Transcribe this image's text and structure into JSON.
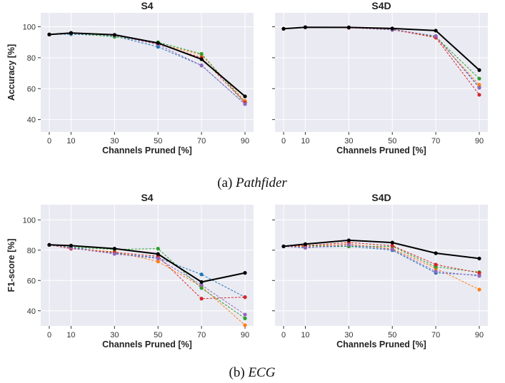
{
  "figure": {
    "captions": [
      {
        "label": "(a)",
        "name": "Pathfider"
      },
      {
        "label": "(b)",
        "name": "ECG"
      }
    ]
  },
  "chart_data": [
    {
      "type": "line",
      "title": "S4",
      "xlabel": "Channels Pruned [%]",
      "ylabel": "Accuracy [%]",
      "x": [
        0,
        10,
        30,
        50,
        70,
        90
      ],
      "ylim": [
        32,
        109
      ],
      "yticks": [
        40,
        60,
        80,
        100
      ],
      "grid": true,
      "series": [
        {
          "color": "#1f77b4",
          "style": "dashed",
          "values": [
            95,
            95.2,
            94,
            87,
            75,
            50
          ]
        },
        {
          "color": "#ff7f0e",
          "style": "dashed",
          "values": [
            95,
            96,
            94.5,
            89,
            82,
            52
          ]
        },
        {
          "color": "#2ca02c",
          "style": "dashed",
          "values": [
            95,
            96,
            93.5,
            90,
            82.5,
            51
          ]
        },
        {
          "color": "#d62728",
          "style": "dashed",
          "values": [
            95,
            96,
            94.5,
            89,
            80,
            51
          ]
        },
        {
          "color": "#9467bd",
          "style": "dashed",
          "values": [
            95,
            96,
            94.5,
            88.5,
            75,
            50
          ]
        },
        {
          "color": "#000000",
          "style": "solid",
          "values": [
            95,
            96,
            94.8,
            89.5,
            79,
            55
          ]
        }
      ]
    },
    {
      "type": "line",
      "title": "S4D",
      "xlabel": "Channels Pruned [%]",
      "ylabel": "",
      "x": [
        0,
        10,
        30,
        50,
        70,
        90
      ],
      "ylim": [
        32,
        109
      ],
      "yticks": [
        40,
        60,
        80,
        100
      ],
      "grid": true,
      "series": [
        {
          "color": "#1f77b4",
          "style": "dashed",
          "values": [
            98.7,
            99.7,
            99.5,
            98,
            94,
            61
          ]
        },
        {
          "color": "#ff7f0e",
          "style": "dashed",
          "values": [
            98.7,
            99.7,
            99.5,
            98.3,
            93,
            62.5
          ]
        },
        {
          "color": "#2ca02c",
          "style": "dashed",
          "values": [
            98.7,
            99.7,
            99.5,
            98.5,
            93.5,
            66.5
          ]
        },
        {
          "color": "#d62728",
          "style": "dashed",
          "values": [
            98.7,
            99.7,
            99.3,
            98.2,
            93,
            56
          ]
        },
        {
          "color": "#9467bd",
          "style": "dashed",
          "values": [
            98.7,
            99.7,
            99.5,
            98.3,
            94,
            60.5
          ]
        },
        {
          "color": "#000000",
          "style": "solid",
          "values": [
            98.7,
            99.7,
            99.6,
            98.9,
            97.5,
            72
          ]
        }
      ]
    },
    {
      "type": "line",
      "title": "S4",
      "xlabel": "Channels Pruned [%]",
      "ylabel": "F1-score [%]",
      "x": [
        0,
        10,
        30,
        50,
        70,
        90
      ],
      "ylim": [
        30,
        110
      ],
      "yticks": [
        40,
        60,
        80,
        100
      ],
      "grid": true,
      "series": [
        {
          "color": "#1f77b4",
          "style": "dashed",
          "values": [
            83.5,
            82,
            78,
            75,
            64,
            49
          ]
        },
        {
          "color": "#ff7f0e",
          "style": "dashed",
          "values": [
            83.5,
            81,
            79,
            72.5,
            56,
            30.5
          ]
        },
        {
          "color": "#2ca02c",
          "style": "dashed",
          "values": [
            83.5,
            82,
            80.5,
            81,
            55,
            35
          ]
        },
        {
          "color": "#d62728",
          "style": "dashed",
          "values": [
            83.5,
            81,
            78.5,
            76,
            48,
            49
          ]
        },
        {
          "color": "#9467bd",
          "style": "dashed",
          "values": [
            83.5,
            81.5,
            77.5,
            74.5,
            57,
            37.5
          ]
        },
        {
          "color": "#000000",
          "style": "solid",
          "values": [
            83.5,
            83,
            81,
            77.5,
            59,
            65
          ]
        }
      ]
    },
    {
      "type": "line",
      "title": "S4D",
      "xlabel": "Channels Pruned [%]",
      "ylabel": "",
      "x": [
        0,
        10,
        30,
        50,
        70,
        90
      ],
      "ylim": [
        30,
        110
      ],
      "yticks": [
        40,
        60,
        80,
        100
      ],
      "grid": true,
      "series": [
        {
          "color": "#1f77b4",
          "style": "dashed",
          "values": [
            82.5,
            82,
            82.5,
            80,
            65,
            63.5
          ]
        },
        {
          "color": "#ff7f0e",
          "style": "dashed",
          "values": [
            82.5,
            82.5,
            84,
            81,
            68,
            54
          ]
        },
        {
          "color": "#2ca02c",
          "style": "dashed",
          "values": [
            82.5,
            83,
            82.5,
            82.5,
            69,
            65.5
          ]
        },
        {
          "color": "#d62728",
          "style": "dashed",
          "values": [
            82.5,
            83,
            85,
            83,
            70.5,
            65
          ]
        },
        {
          "color": "#9467bd",
          "style": "dashed",
          "values": [
            82.5,
            81.5,
            83.5,
            80.5,
            66,
            63
          ]
        },
        {
          "color": "#000000",
          "style": "solid",
          "values": [
            82.5,
            84,
            86.5,
            85,
            78,
            74.5
          ]
        }
      ]
    }
  ]
}
